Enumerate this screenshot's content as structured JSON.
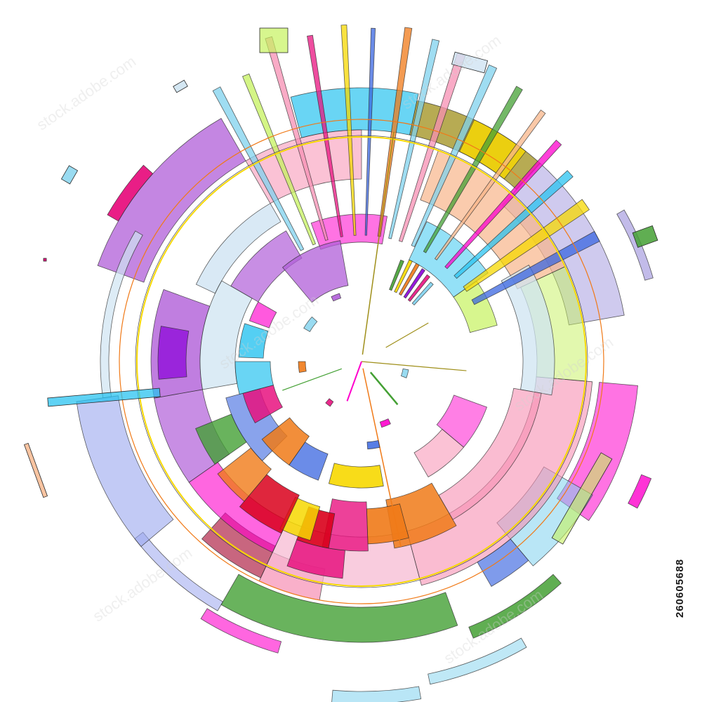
{
  "image": {
    "stock_id": "260605688",
    "watermark_text": "stock.adobe.com",
    "palette": {
      "purple": "#b05ed8",
      "magenta": "#ff00cc",
      "hot_pink": "#e8127f",
      "pink": "#f78fb3",
      "light_pink": "#f7b6d0",
      "cyan": "#29c3f0",
      "sky": "#7fd2ee",
      "pale_blue": "#cfe4f2",
      "blue": "#3a66e0",
      "periwinkle": "#9aa6ee",
      "lavender": "#a89ee0",
      "green": "#44a034",
      "lime": "#c6f25e",
      "yellow": "#f7d800",
      "orange": "#f07a18",
      "peach": "#f8b58a",
      "red": "#d9001b",
      "dark_red": "#a3002a",
      "olive": "#9f8f1a",
      "violet": "#8a00d9"
    }
  }
}
